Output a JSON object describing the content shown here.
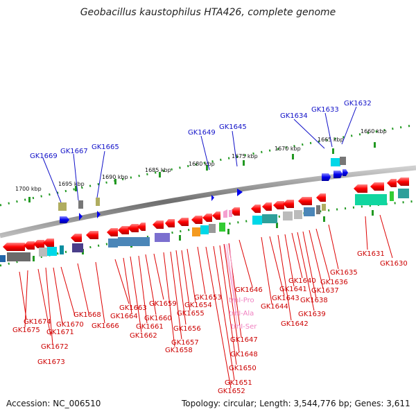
{
  "title": "Geobacillus kaustophilus HTA426, complete genome",
  "footer": {
    "accession": "Accession: NC_006510",
    "topology": "Topology: circular; Length: 3,544,776 bp; Genes: 3,611"
  },
  "scale_labels": [
    "1700 kbp",
    "1695 kbp",
    "1690 kbp",
    "1685 kbp",
    "1680 kbp",
    "1675 kbp",
    "1670 kbp",
    "1665 kbp",
    "1660 kbp"
  ],
  "upper_gene_labels": [
    "GK1669",
    "GK1667",
    "GK1665",
    "GK1649",
    "GK1645",
    "GK1634",
    "GK1633",
    "GK1632"
  ],
  "lower_gene_labels": [
    "GK1674",
    "GK1675",
    "GK1670",
    "GK1671",
    "GK1672",
    "GK1673",
    "GK1668",
    "GK1666",
    "GK1663",
    "GK1664",
    "GK1662",
    "GK1661",
    "GK1660",
    "GK1659",
    "GK1658",
    "GK1657",
    "GK1656",
    "GK1655",
    "GK1654",
    "GK1653",
    "GK1652",
    "GK1651",
    "GK1650",
    "GK1648",
    "GK1647",
    "GK1646",
    "GK1644",
    "GK1643",
    "GK1642",
    "GK1641",
    "GK1640",
    "GK1639",
    "GK1638",
    "GK1637",
    "GK1636",
    "GK1635",
    "GK1631",
    "GK1630"
  ],
  "rna_labels": [
    "trnI-Pro",
    "trnI-Ala",
    "trnI-Ser"
  ],
  "colors": {
    "forward": "#0000ee",
    "reverse": "#ee0000",
    "rna": "#f080c0",
    "ticks": "#229922",
    "backbone": "#888888"
  }
}
